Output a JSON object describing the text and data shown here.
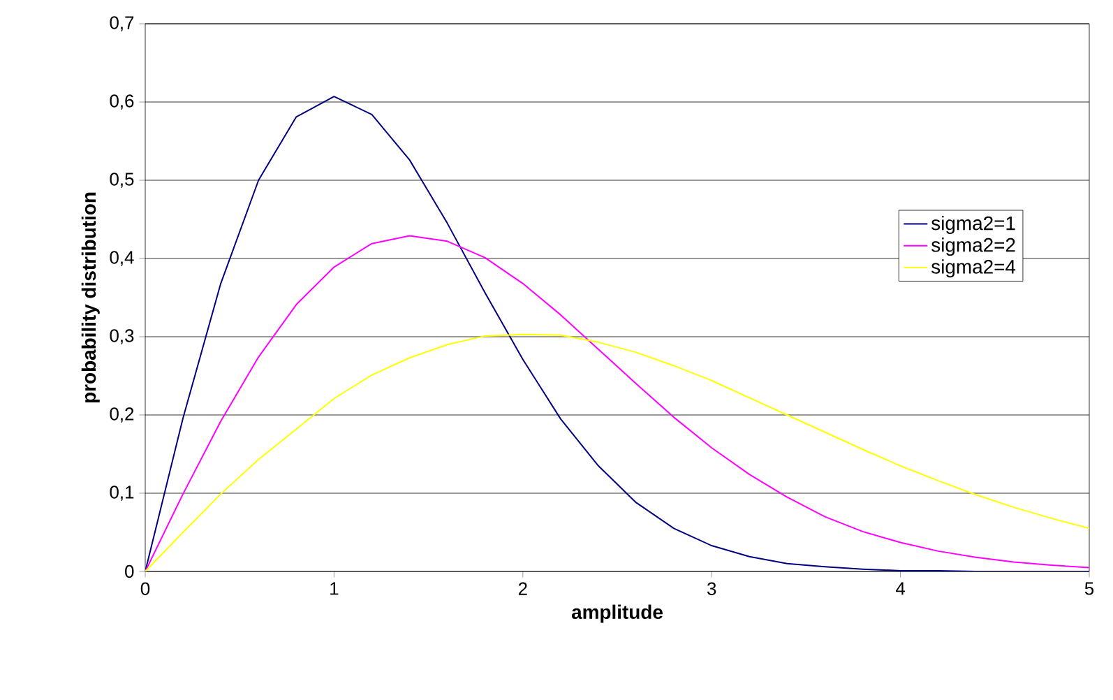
{
  "chart_data": {
    "type": "line",
    "xlabel": "amplitude",
    "ylabel": "probability distribution",
    "x": [
      0,
      0.2,
      0.4,
      0.6,
      0.8,
      1,
      1.2,
      1.4,
      1.6,
      1.8,
      2,
      2.2,
      2.4,
      2.6,
      2.8,
      3,
      3.2,
      3.4,
      3.6,
      3.8,
      4,
      4.2,
      4.4,
      4.6,
      4.8,
      5
    ],
    "series": [
      {
        "name": "sigma2=1",
        "color": "#000080",
        "values": [
          0,
          0.196,
          0.368,
          0.5,
          0.581,
          0.607,
          0.584,
          0.526,
          0.445,
          0.356,
          0.271,
          0.195,
          0.135,
          0.088,
          0.055,
          0.033,
          0.019,
          0.01,
          0.006,
          0.003,
          0.001,
          0.001,
          0,
          0,
          0,
          0
        ]
      },
      {
        "name": "sigma2=2",
        "color": "#ff00ff",
        "values": [
          0,
          0.099,
          0.192,
          0.274,
          0.341,
          0.389,
          0.419,
          0.429,
          0.422,
          0.401,
          0.368,
          0.328,
          0.284,
          0.24,
          0.197,
          0.158,
          0.124,
          0.095,
          0.07,
          0.051,
          0.037,
          0.026,
          0.018,
          0.012,
          0.008,
          0.005
        ]
      },
      {
        "name": "sigma2=4",
        "color": "#ffff00",
        "values": [
          0,
          0.05,
          0.099,
          0.143,
          0.182,
          0.221,
          0.251,
          0.273,
          0.29,
          0.301,
          0.303,
          0.302,
          0.293,
          0.28,
          0.263,
          0.244,
          0.222,
          0.2,
          0.178,
          0.156,
          0.135,
          0.116,
          0.098,
          0.082,
          0.068,
          0.055
        ]
      }
    ],
    "xlim": [
      0,
      5
    ],
    "ylim": [
      0,
      0.7
    ],
    "xticks": [
      0,
      1,
      2,
      3,
      4,
      5
    ],
    "yticks": [
      0,
      {
        "value": 0.1,
        "label": "0,1"
      },
      {
        "value": 0.2,
        "label": "0,2"
      },
      {
        "value": 0.3,
        "label": "0,3"
      },
      {
        "value": 0.4,
        "label": "0,4"
      },
      {
        "value": 0.5,
        "label": "0,5"
      },
      {
        "value": 0.6,
        "label": "0,6"
      },
      {
        "value": 0.7,
        "label": "0,7"
      }
    ],
    "grid": "y",
    "legend": "right",
    "marker": "none",
    "line_style": "solid"
  }
}
